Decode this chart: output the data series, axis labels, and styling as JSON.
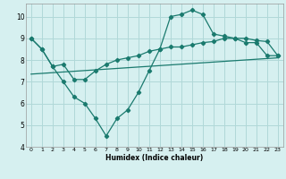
{
  "xlabel": "Humidex (Indice chaleur)",
  "bg_color": "#d6f0f0",
  "grid_color": "#b0d8d8",
  "line_color": "#1a7a6e",
  "xlim": [
    -0.5,
    23.5
  ],
  "ylim": [
    4,
    10.6
  ],
  "xticks": [
    0,
    1,
    2,
    3,
    4,
    5,
    6,
    7,
    8,
    9,
    10,
    11,
    12,
    13,
    14,
    15,
    16,
    17,
    18,
    19,
    20,
    21,
    22,
    23
  ],
  "yticks": [
    4,
    5,
    6,
    7,
    8,
    9,
    10
  ],
  "series1_x": [
    0,
    1,
    2,
    3,
    4,
    5,
    6,
    7,
    8,
    9,
    10,
    11,
    12,
    13,
    14,
    15,
    16,
    17,
    18,
    19,
    20,
    21,
    22,
    23
  ],
  "series1_y": [
    9.0,
    8.5,
    7.7,
    7.0,
    6.3,
    6.0,
    5.3,
    4.5,
    5.3,
    5.7,
    6.5,
    7.5,
    8.5,
    10.0,
    10.1,
    10.3,
    10.1,
    9.2,
    9.1,
    9.0,
    8.8,
    8.8,
    8.2,
    8.2
  ],
  "series2_x": [
    0,
    1,
    2,
    3,
    4,
    5,
    6,
    7,
    8,
    9,
    10,
    11,
    12,
    13,
    14,
    15,
    16,
    17,
    18,
    19,
    20,
    21,
    22,
    23
  ],
  "series2_y": [
    9.0,
    8.5,
    7.7,
    7.8,
    7.1,
    7.1,
    7.5,
    7.8,
    8.0,
    8.1,
    8.2,
    8.4,
    8.5,
    8.6,
    8.6,
    8.7,
    8.8,
    8.85,
    9.0,
    9.0,
    9.0,
    8.9,
    8.85,
    8.2
  ],
  "series3_x": [
    0,
    23
  ],
  "series3_y": [
    7.35,
    8.1
  ]
}
